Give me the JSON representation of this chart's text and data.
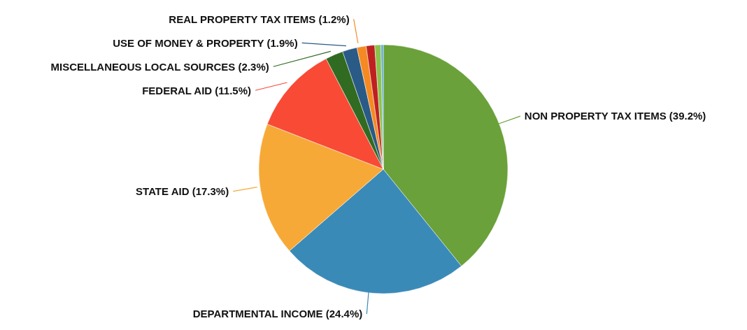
{
  "chart_data": {
    "type": "pie",
    "categories": [
      "NON PROPERTY TAX ITEMS",
      "DEPARTMENTAL INCOME",
      "STATE AID",
      "FEDERAL AID",
      "MISCELLANEOUS LOCAL SOURCES",
      "USE OF MONEY & PROPERTY",
      "REAL PROPERTY TAX ITEMS",
      null,
      null,
      null
    ],
    "values": [
      39.2,
      24.4,
      17.3,
      11.5,
      2.3,
      1.9,
      1.2,
      1.1,
      0.8,
      0.3
    ],
    "value_labels": [
      "(39.2%)",
      "(24.4%)",
      "(17.3%)",
      "(11.5%)",
      "(2.3%)",
      "(1.9%)",
      "(1.2%)",
      null,
      null,
      null
    ],
    "colors": [
      "#6aa13a",
      "#3a8ab8",
      "#f7a937",
      "#f84a35",
      "#316b21",
      "#2a5a86",
      "#f58a22",
      "#bf2121",
      "#8bc34a",
      "#5dade2"
    ],
    "legend": false
  }
}
